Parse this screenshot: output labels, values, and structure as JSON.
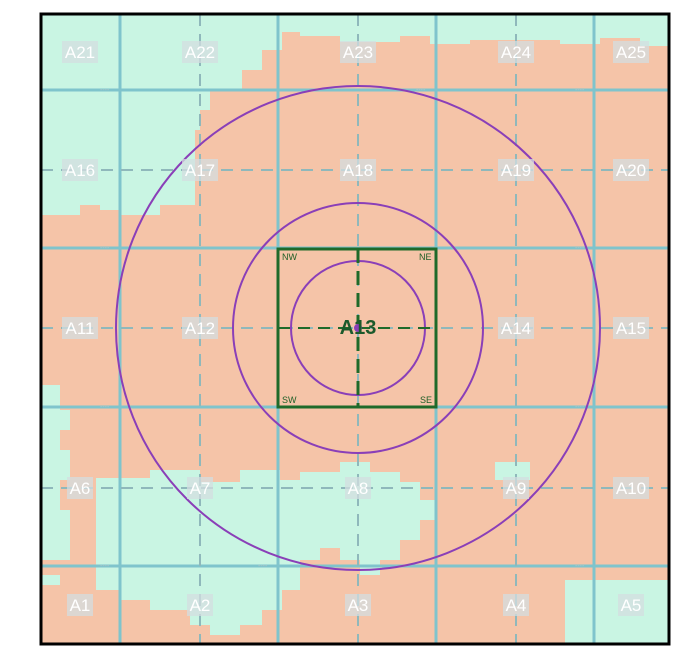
{
  "grid": {
    "rows": [
      [
        "A21",
        "A22",
        "A23",
        "A24",
        "A25"
      ],
      [
        "A16",
        "A17",
        "A18",
        "A19",
        "A20"
      ],
      [
        "A11",
        "A12",
        "A13",
        "A14",
        "A15"
      ],
      [
        "A6",
        "A7",
        "A8",
        "A9",
        "A10"
      ],
      [
        "A1",
        "A2",
        "A3",
        "A4",
        "A5"
      ]
    ]
  },
  "center_cell": {
    "label": "A13",
    "quadrants": {
      "nw": "NW",
      "ne": "NE",
      "sw": "SW",
      "se": "SE"
    }
  },
  "colors": {
    "land_salmon": "#f5c4a8",
    "land_mint": "#c9f5e3",
    "grid_solid": "#7fc4cc",
    "grid_dashed": "#8fb8bb",
    "circles": "#8a3fb8",
    "center_box": "#1f6a2a",
    "frame": "#000000"
  }
}
